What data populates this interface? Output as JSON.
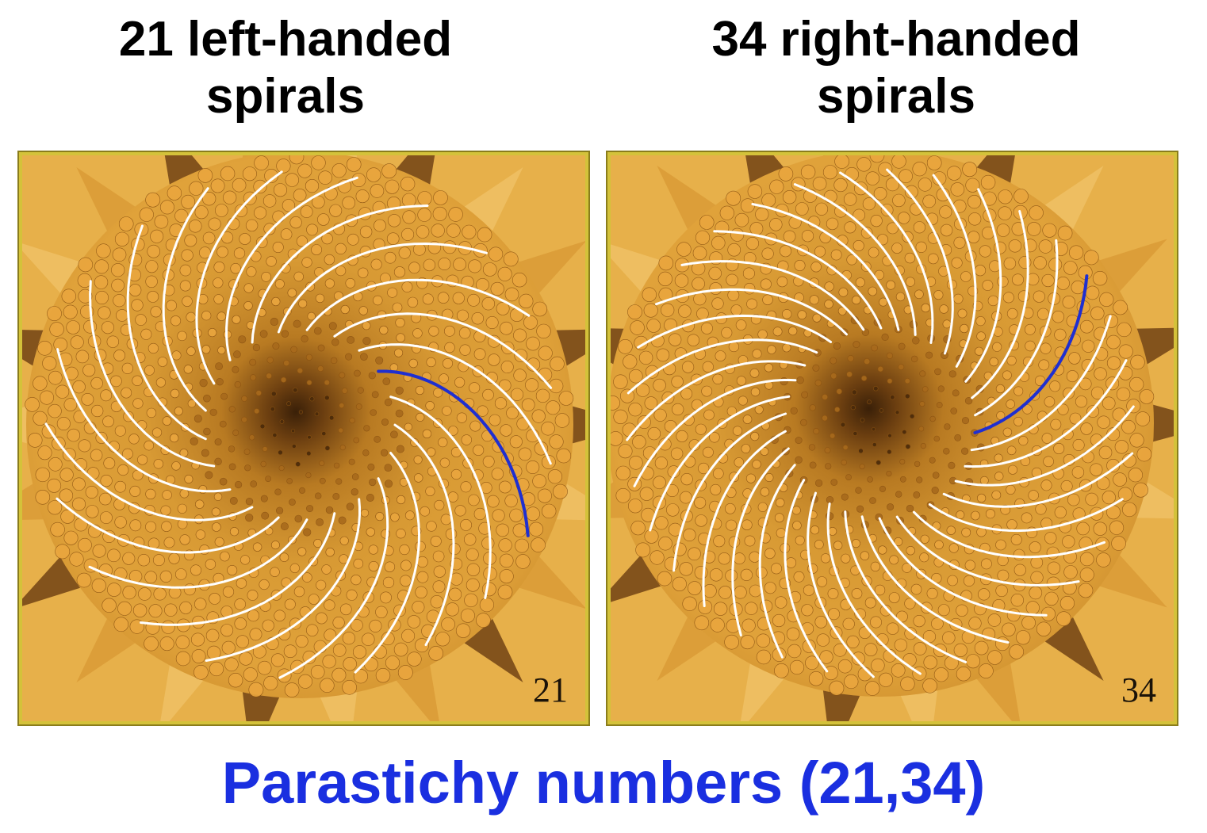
{
  "left": {
    "title_line1": "21 left-handed",
    "title_line2": "spirals",
    "count": 21,
    "number_label": "21",
    "direction": "counterclockwise"
  },
  "right": {
    "title_line1": "34 right-handed",
    "title_line2": "spirals",
    "count": 34,
    "number_label": "34",
    "direction": "clockwise"
  },
  "footer": {
    "title": "Parastichy numbers (21,34)"
  },
  "colors": {
    "spiral": "#ffffff",
    "highlight_spiral": "#1f2fd0",
    "title_accent": "#1a2fe0",
    "frame": "#d4c23a"
  }
}
